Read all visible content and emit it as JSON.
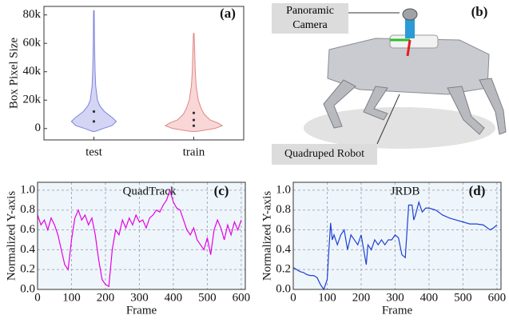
{
  "chart_data": [
    {
      "type": "violin",
      "panel_label": "(a)",
      "y_label": "Box Pixel Size",
      "categories": [
        "test",
        "train"
      ],
      "violins": [
        {
          "color": "#c9cbf2",
          "edge": "#7d82d9",
          "shape_y": [
            -2000,
            0,
            2000,
            5000,
            8000,
            12000,
            16000,
            20000,
            30000,
            40000,
            60000,
            83000
          ],
          "shape_width": [
            0.05,
            0.3,
            0.6,
            0.75,
            0.6,
            0.35,
            0.2,
            0.12,
            0.06,
            0.04,
            0.02,
            0.01
          ],
          "points": [
            5000,
            12000
          ]
        },
        {
          "color": "#f8cdcd",
          "edge": "#e08585",
          "shape_y": [
            -2000,
            0,
            2000,
            4000,
            6000,
            10000,
            14000,
            20000,
            30000,
            40000,
            55000,
            67000
          ],
          "shape_width": [
            0.1,
            0.7,
            0.95,
            0.8,
            0.55,
            0.35,
            0.25,
            0.15,
            0.08,
            0.05,
            0.03,
            0.01
          ],
          "points": [
            2000,
            6000,
            11000
          ]
        }
      ],
      "ylim": [
        -8000,
        86000
      ],
      "yticks": [
        0,
        {
          "value": 20000,
          "label": "20k"
        },
        {
          "value": 40000,
          "label": "40k"
        },
        {
          "value": 60000,
          "label": "60k"
        },
        {
          "value": 80000,
          "label": "80k"
        }
      ]
    },
    {
      "type": "line",
      "panel_label": "(c)",
      "title": "QuadTrack",
      "x_label": "Frame",
      "y_label": "Normalized Y-axis",
      "grid": true,
      "series": [
        {
          "color": "#e600e6",
          "x": [
            0,
            10,
            20,
            30,
            40,
            50,
            60,
            70,
            80,
            90,
            100,
            110,
            120,
            130,
            140,
            150,
            160,
            170,
            180,
            190,
            200,
            210,
            220,
            230,
            240,
            250,
            260,
            270,
            280,
            290,
            300,
            310,
            320,
            330,
            340,
            350,
            360,
            370,
            380,
            390,
            400,
            410,
            420,
            430,
            440,
            450,
            460,
            470,
            480,
            490,
            500,
            510,
            520,
            530,
            540,
            550,
            560,
            570,
            580,
            590,
            600
          ],
          "values": [
            0.75,
            0.65,
            0.7,
            0.6,
            0.72,
            0.65,
            0.55,
            0.4,
            0.25,
            0.2,
            0.5,
            0.72,
            0.8,
            0.7,
            0.75,
            0.65,
            0.72,
            0.55,
            0.3,
            0.1,
            0.05,
            0.03,
            0.4,
            0.6,
            0.55,
            0.7,
            0.62,
            0.72,
            0.65,
            0.75,
            0.68,
            0.7,
            0.62,
            0.72,
            0.75,
            0.8,
            0.78,
            0.85,
            0.9,
            1.0,
            0.88,
            0.82,
            0.8,
            0.7,
            0.6,
            0.55,
            0.62,
            0.5,
            0.45,
            0.4,
            0.52,
            0.35,
            0.6,
            0.7,
            0.62,
            0.5,
            0.65,
            0.55,
            0.68,
            0.6,
            0.7
          ]
        }
      ],
      "xlim": [
        0,
        612
      ],
      "ylim": [
        0,
        1.08
      ],
      "xticks": [
        0,
        100,
        200,
        300,
        400,
        500,
        600
      ],
      "yticks": [
        {
          "value": 0,
          "label": "0.0"
        },
        0.2,
        0.4,
        0.6,
        0.8,
        {
          "value": 1,
          "label": "1.0"
        }
      ]
    },
    {
      "type": "line",
      "panel_label": "(d)",
      "title": "JRDB",
      "x_label": "Frame",
      "y_label": "Normalized Y-axis",
      "grid": true,
      "series": [
        {
          "color": "#1f3fd6",
          "x": [
            0,
            10,
            20,
            30,
            40,
            50,
            60,
            70,
            80,
            90,
            100,
            105,
            110,
            115,
            120,
            130,
            140,
            150,
            160,
            170,
            180,
            190,
            200,
            210,
            215,
            220,
            230,
            240,
            250,
            260,
            270,
            280,
            290,
            300,
            310,
            320,
            330,
            340,
            350,
            355,
            360,
            370,
            380,
            390,
            400,
            420,
            440,
            460,
            480,
            500,
            520,
            540,
            560,
            580,
            590,
            600
          ],
          "values": [
            0.22,
            0.2,
            0.18,
            0.17,
            0.15,
            0.14,
            0.14,
            0.12,
            0.05,
            0.0,
            0.1,
            0.4,
            0.67,
            0.5,
            0.55,
            0.45,
            0.55,
            0.6,
            0.4,
            0.55,
            0.5,
            0.45,
            0.55,
            0.35,
            0.25,
            0.45,
            0.4,
            0.5,
            0.45,
            0.5,
            0.45,
            0.5,
            0.5,
            0.55,
            0.52,
            0.35,
            0.32,
            0.85,
            0.85,
            0.7,
            0.75,
            0.88,
            0.78,
            0.82,
            0.82,
            0.8,
            0.75,
            0.72,
            0.7,
            0.68,
            0.66,
            0.66,
            0.65,
            0.6,
            0.62,
            0.65
          ]
        }
      ],
      "xlim": [
        0,
        612
      ],
      "ylim": [
        0,
        1.08
      ],
      "xticks": [
        0,
        100,
        200,
        300,
        400,
        500,
        600
      ],
      "yticks": [
        {
          "value": 0,
          "label": "0.0"
        },
        0.2,
        0.4,
        0.6,
        0.8,
        {
          "value": 1,
          "label": "1.0"
        }
      ]
    }
  ],
  "photo_panel": {
    "panel_label": "(b)",
    "camera_callout": "Panoramic Camera",
    "robot_callout": "Quadruped Robot"
  }
}
